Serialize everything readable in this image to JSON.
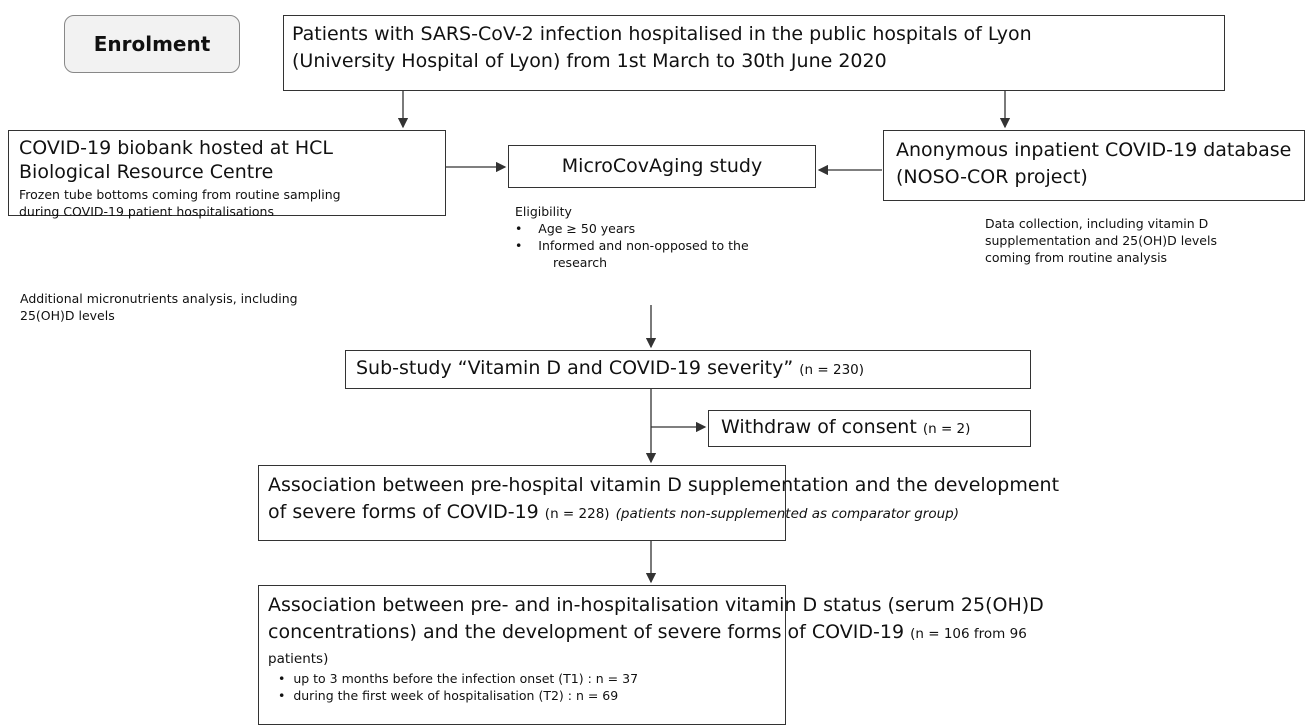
{
  "enrolment": "Enrolment",
  "source": {
    "lines": [
      "Patients with SARS-CoV-2 infection hospitalised in the public hospitals of Lyon",
      "(University Hospital of Lyon) from 1st March to 30th June 2020"
    ]
  },
  "biobank": {
    "title_lines": [
      "COVID-19 biobank hosted at HCL",
      "Biological Resource Centre"
    ],
    "detail_lines": [
      "Frozen tube bottoms coming from routine sampling",
      "during COVID-19 patient hospitalisations"
    ],
    "note_lines": [
      "Additional micronutrients analysis, including",
      "25(OH)D levels"
    ]
  },
  "study": {
    "title": "MicroCovAging study",
    "eligibility": "Eligibility",
    "criteria": [
      "Age ≥ 50 years",
      "Informed and non-opposed to the",
      "research"
    ]
  },
  "database": {
    "title_lines": [
      "Anonymous inpatient COVID-19 database",
      "(NOSO-COR project)"
    ],
    "note_lines": [
      "Data collection, including vitamin D",
      "supplementation and 25(OH)D levels",
      "coming from routine analysis"
    ]
  },
  "substudy": {
    "title": "Sub-study “Vitamin D and COVID-19 severity”",
    "n": "(n = 230)"
  },
  "withdraw": {
    "title": "Withdraw of consent",
    "n": "(n = 2)"
  },
  "association1": {
    "line1": "Association between pre-hospital vitamin D supplementation and the development",
    "line2": "of severe forms of COVID-19",
    "n": "(n = 228)",
    "note": "(patients non-supplemented as comparator group)"
  },
  "association2": {
    "line1": "Association between pre- and in-hospitalisation vitamin D status (serum 25(OH)D",
    "line2": "concentrations) and the development of severe forms of COVID-19",
    "n": "(n = 106 from 96",
    "line3": "patients)",
    "bullets": [
      "up to 3 months before the infection onset (T1) : n = 37",
      "during the first week of hospitalisation (T2) : n = 69"
    ]
  }
}
